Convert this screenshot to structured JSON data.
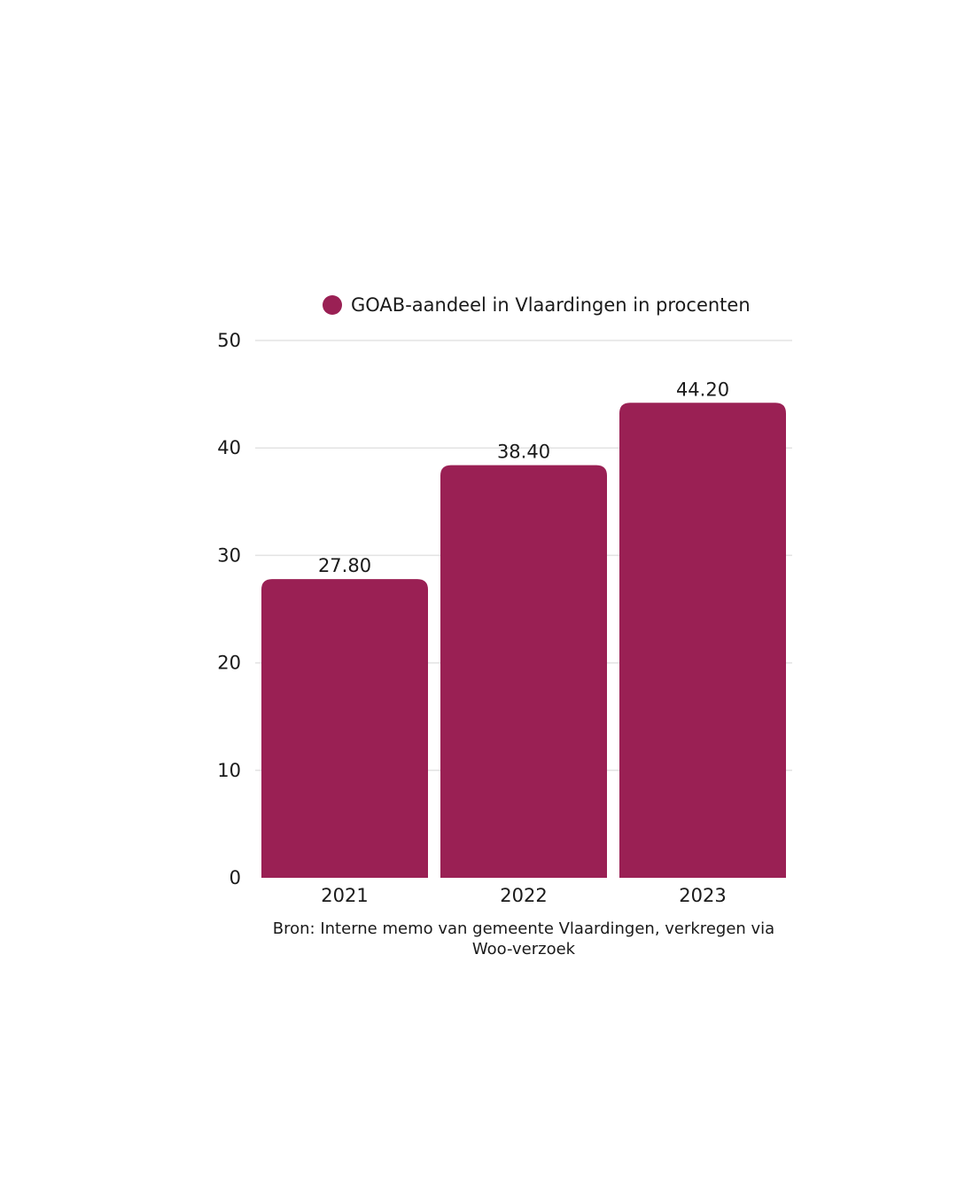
{
  "chart_data": {
    "type": "bar",
    "categories": [
      "2021",
      "2022",
      "2023"
    ],
    "series": [
      {
        "name": "GOAB-aandeel in Vlaardingen in procenten",
        "values": [
          27.8,
          38.4,
          44.2
        ],
        "value_labels": [
          "27.80",
          "38.40",
          "44.20"
        ],
        "color": "#9a2054"
      }
    ],
    "ylim": [
      0,
      50
    ],
    "yticks": [
      "0",
      "10",
      "20",
      "30",
      "40",
      "50"
    ],
    "xlabel": "",
    "ylabel": "",
    "grid": true,
    "legend": "top"
  },
  "source_note": "Bron: Interne memo van gemeente Vlaardingen, verkregen via Woo-verzoek"
}
